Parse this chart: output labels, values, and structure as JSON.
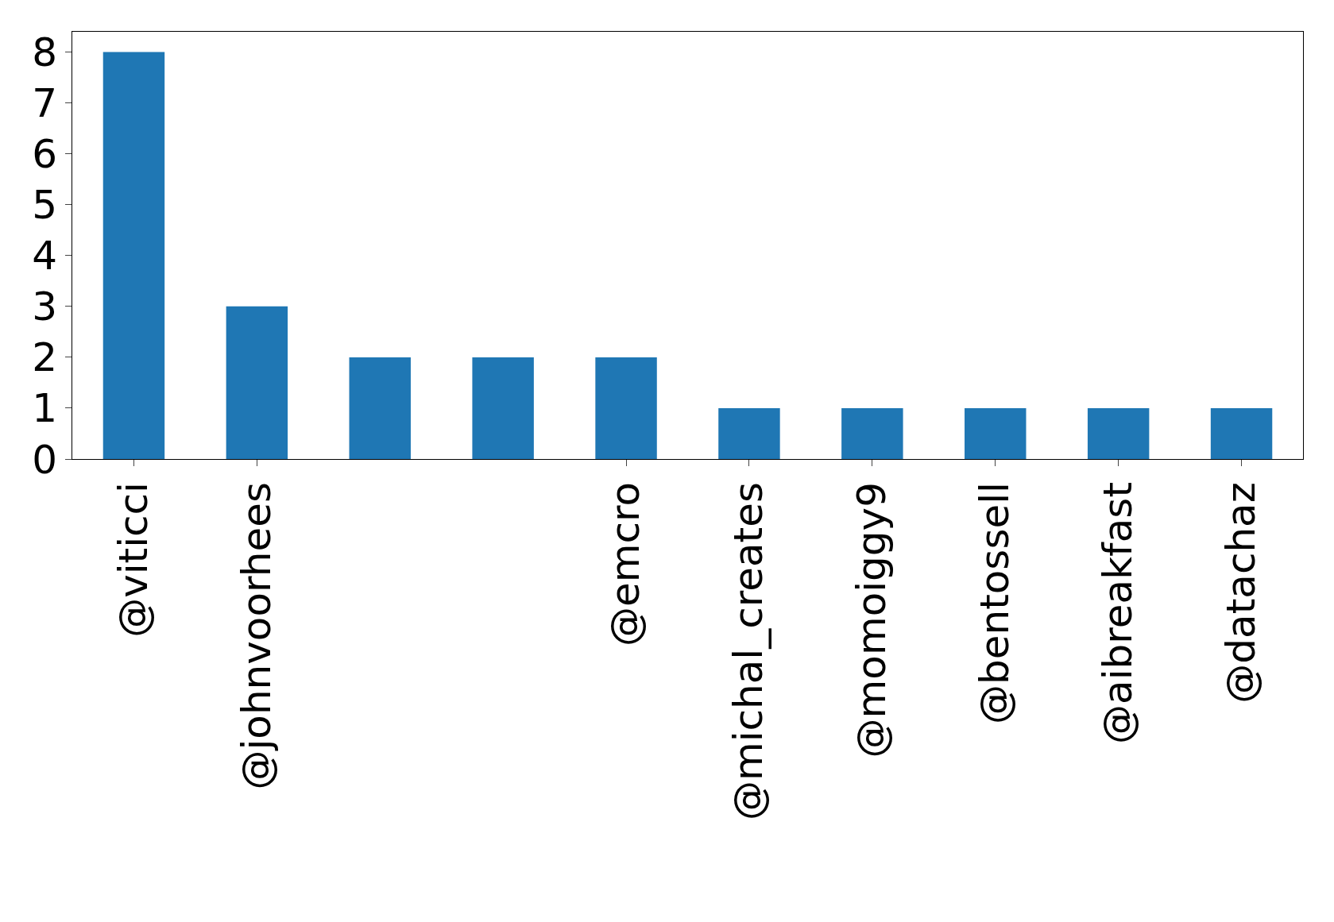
{
  "chart_data": {
    "type": "bar",
    "categories": [
      "@viticci",
      "@johnvoorhees",
      null,
      null,
      "@emcro",
      "@michal_creates",
      "@momoiggy9",
      "@bentossell",
      "@aibreakfast",
      "@datachaz"
    ],
    "values": [
      8,
      3,
      2,
      2,
      2,
      1,
      1,
      1,
      1,
      1
    ],
    "color": "#1f77b4",
    "ylim": [
      0,
      8.4
    ],
    "yticks": [
      0,
      1,
      2,
      3,
      4,
      5,
      6,
      7,
      8
    ],
    "grid": false,
    "legend": false
  }
}
